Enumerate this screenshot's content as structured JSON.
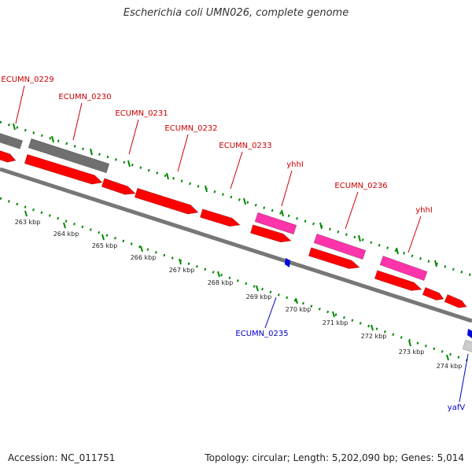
{
  "header": {
    "title": "Escherichia coli UMN026, complete genome"
  },
  "footer": {
    "accession": "Accession: NC_011751",
    "summary": "Topology: circular; Length: 5,202,090 bp; Genes: 5,014"
  },
  "ruler": {
    "labels": [
      "263 kbp",
      "264 kbp",
      "265 kbp",
      "266 kbp",
      "267 kbp",
      "268 kbp",
      "269 kbp",
      "270 kbp",
      "271 kbp",
      "272 kbp",
      "273 kbp",
      "274 kbp"
    ]
  },
  "gene_labels": {
    "forward": [
      "ECUMN_0229",
      "ECUMN_0230",
      "ECUMN_0231",
      "ECUMN_0232",
      "ECUMN_0233",
      "yhhI",
      "ECUMN_0236",
      "yhhI"
    ],
    "reverse": [
      "ECUMN_0235",
      "yafV"
    ]
  },
  "colors": {
    "forward_cds": "#ff0000",
    "reverse_cds": "#0000dd",
    "mobile_element": "#ff33aa",
    "other_feature": "#707070",
    "backbone": "#808080",
    "ticks": "#008800",
    "forward_label": "#cc0000",
    "reverse_label": "#0000cc"
  }
}
